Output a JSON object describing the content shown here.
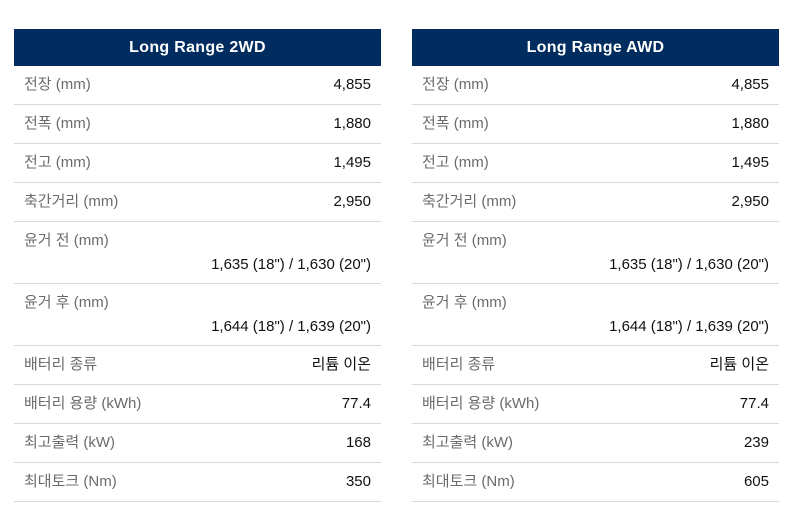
{
  "colors": {
    "header_bg": "#002c5f",
    "header_text": "#ffffff",
    "label_text": "#6b6b6b",
    "value_text": "#111111",
    "divider": "#d9d9d9"
  },
  "tables": [
    {
      "header": "Long Range 2WD",
      "rows": [
        {
          "label": "전장 (mm)",
          "value": "4,855"
        },
        {
          "label": "전폭 (mm)",
          "value": "1,880"
        },
        {
          "label": "전고 (mm)",
          "value": "1,495"
        },
        {
          "label": "축간거리 (mm)",
          "value": "2,950"
        },
        {
          "label": "윤거 전 (mm)",
          "value": "1,635 (18\") / 1,630 (20\")"
        },
        {
          "label": "윤거 후 (mm)",
          "value": "1,644 (18\") / 1,639 (20\")"
        },
        {
          "label": "배터리 종류",
          "value": "리튬 이온"
        },
        {
          "label": "배터리 용량 (kWh)",
          "value": "77.4"
        },
        {
          "label": "최고출력 (kW)",
          "value": "168"
        },
        {
          "label": "최대토크 (Nm)",
          "value": "350"
        }
      ]
    },
    {
      "header": "Long Range AWD",
      "rows": [
        {
          "label": "전장 (mm)",
          "value": "4,855"
        },
        {
          "label": "전폭 (mm)",
          "value": "1,880"
        },
        {
          "label": "전고 (mm)",
          "value": "1,495"
        },
        {
          "label": "축간거리 (mm)",
          "value": "2,950"
        },
        {
          "label": "윤거 전 (mm)",
          "value": "1,635 (18\") / 1,630 (20\")"
        },
        {
          "label": "윤거 후 (mm)",
          "value": "1,644 (18\") / 1,639 (20\")"
        },
        {
          "label": "배터리 종류",
          "value": "리튬 이온"
        },
        {
          "label": "배터리 용량 (kWh)",
          "value": "77.4"
        },
        {
          "label": "최고출력 (kW)",
          "value": "239"
        },
        {
          "label": "최대토크 (Nm)",
          "value": "605"
        }
      ]
    }
  ]
}
